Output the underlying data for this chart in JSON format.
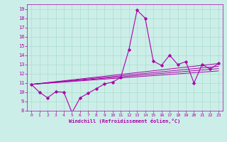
{
  "xlabel": "Windchill (Refroidissement éolien,°C)",
  "bg_color": "#cceee8",
  "grid_color": "#aaddcc",
  "line_color": "#aa00aa",
  "xlim": [
    -0.5,
    23.5
  ],
  "ylim": [
    8,
    19.5
  ],
  "xticks": [
    0,
    1,
    2,
    3,
    4,
    5,
    6,
    7,
    8,
    9,
    10,
    11,
    12,
    13,
    14,
    15,
    16,
    17,
    18,
    19,
    20,
    21,
    22,
    23
  ],
  "yticks": [
    8,
    9,
    10,
    11,
    12,
    13,
    14,
    15,
    16,
    17,
    18,
    19
  ],
  "main_line": {
    "x": [
      0,
      1,
      2,
      3,
      4,
      5,
      6,
      7,
      8,
      9,
      10,
      11,
      12,
      13,
      14,
      15,
      16,
      17,
      18,
      19,
      20,
      21,
      22,
      23
    ],
    "y": [
      10.85,
      10.0,
      9.4,
      10.05,
      10.0,
      7.8,
      9.4,
      9.9,
      10.4,
      10.9,
      11.1,
      11.6,
      14.6,
      18.85,
      18.0,
      13.35,
      12.9,
      14.0,
      13.0,
      13.3,
      11.0,
      13.0,
      12.5,
      13.1
    ]
  },
  "trend_lines": [
    {
      "x": [
        0,
        23
      ],
      "y": [
        10.85,
        13.1
      ]
    },
    {
      "x": [
        0,
        23
      ],
      "y": [
        10.85,
        12.55
      ]
    },
    {
      "x": [
        0,
        23
      ],
      "y": [
        10.85,
        12.8
      ]
    },
    {
      "x": [
        0,
        23
      ],
      "y": [
        10.85,
        12.3
      ]
    }
  ]
}
